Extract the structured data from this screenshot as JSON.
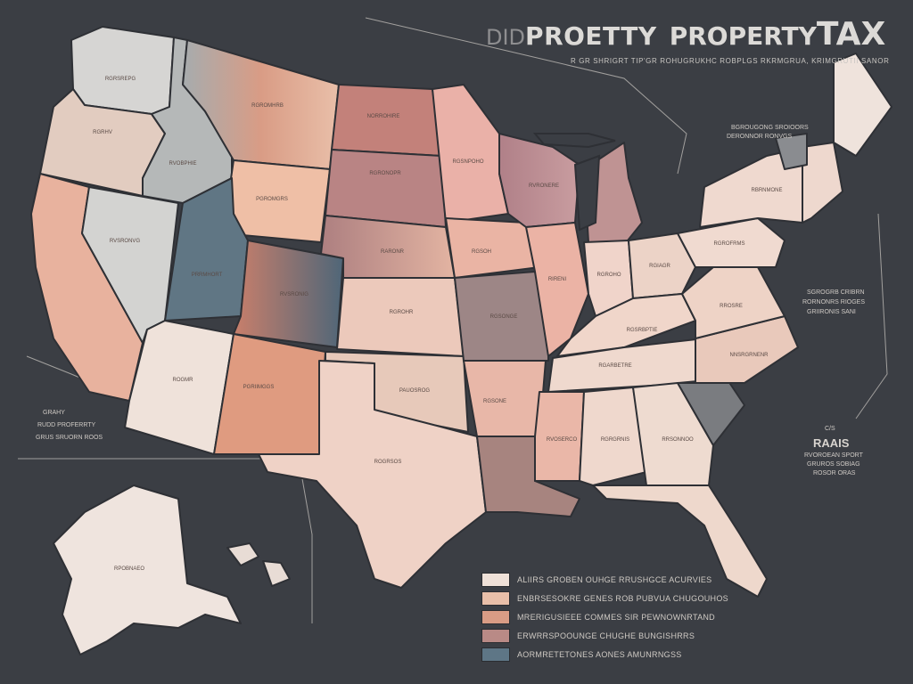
{
  "title": {
    "prefix": "DID",
    "word1": "PROETTY",
    "word2": "PROPERTY",
    "word3": "TAX"
  },
  "subtitle": "R GR SHRIGRT TIP'GR ROHUGRUKHC ROBPLGS RKRMGRUA, KRIMGRUTII SANOR",
  "side_left": [
    "GRAHY",
    "RUDD PROFERRTY",
    "GRUS SRUORN ROOS"
  ],
  "side_right": [
    "C/S",
    "RAAIS",
    "RVOROEAN SPORT",
    "GRUROS SOBIAG",
    "ROSOR ORAS"
  ],
  "right_notes": [
    "BGROUGONG SROIOORS",
    "DERONNOR RONVGS",
    "SGROGRB CRIBRN",
    "RORNONRS RIOGES",
    "GRIIRONIS SANI"
  ],
  "legend": [
    {
      "color": "#efe1d8",
      "label": "ALIIRS GROBEN  OUHGE  RRUSHGCE  ACURVIES"
    },
    {
      "color": "#e9bfa9",
      "label": "ENBRSESOKRE GENES ROB PUBVUA CHUGOUHOS"
    },
    {
      "color": "#d99c85",
      "label": "MRERIGUSIEEE COMMES SIR PEWNOWNRTAND"
    },
    {
      "color": "#b98a86",
      "label": "ERWRRSPOOUNGE CHUGHE BUNGISHRRS"
    },
    {
      "color": "#5e7686",
      "label": "AORMRETETONES AONES AMUNRNGSS"
    }
  ],
  "states": {
    "wa": "RGRSREPG",
    "or": "RGRHV",
    "ca": "",
    "nv": "RVSRONVG",
    "id": "RVOBPHIE",
    "mt": "RGROMHRB",
    "wy": "PGROMGRS",
    "ut": "PRRMHORT",
    "co": "RVSRONIG",
    "az": "ROGMR",
    "nm": "PGRIIMGGS",
    "nd": "NORROHIRE",
    "sd": "RGRONOPR",
    "ne": "RARONR",
    "ks": "RGROHR",
    "ok": "PAUOSROG",
    "tx": "ROGRSOS",
    "mn": "RGSNPOHO",
    "ia": "RGSOH",
    "mo": "RGSONGE",
    "ar": "RGSONE",
    "la": "",
    "wi": "RVRONERE",
    "mi": "",
    "il": "RIRENI",
    "in": "RGROHO",
    "oh": "RGIAGR",
    "ky": "RGSRBPTIE",
    "tn": "RGARBETRE",
    "ms": "RVOSERCO",
    "al": "RGRGRNIS",
    "ga": "RRSONNOO",
    "fl": "",
    "sc": "",
    "nc": "NNSRGRNENR",
    "va": "RROSRE",
    "pa": "RGROFRMS",
    "ny": "RBRNMONE",
    "me": "",
    "ak": "RPOBNAEO"
  }
}
